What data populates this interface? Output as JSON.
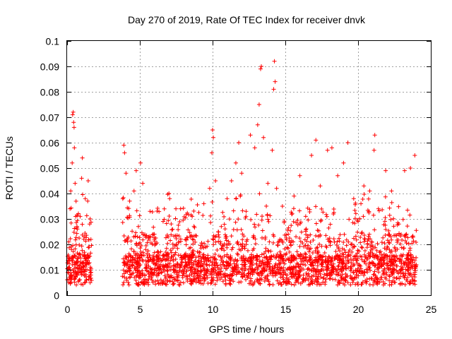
{
  "chart_data": {
    "type": "scatter",
    "title": "Day 270 of 2019, Rate Of TEC Index for receiver dnvk",
    "xlabel": "GPS time / hours",
    "ylabel": "ROTI / TECUs",
    "xlim": [
      0,
      25
    ],
    "ylim": [
      0,
      0.1
    ],
    "xticks": [
      0,
      5,
      10,
      15,
      20,
      25
    ],
    "xtick_labels": [
      "0",
      "5",
      "10",
      "15",
      "20",
      "25"
    ],
    "yticks": [
      0,
      0.01,
      0.02,
      0.03,
      0.04,
      0.05,
      0.06,
      0.07,
      0.08,
      0.09,
      0.1
    ],
    "ytick_labels": [
      "0",
      "0.01",
      "0.02",
      "0.03",
      "0.04",
      "0.05",
      "0.06",
      "0.07",
      "0.08",
      "0.09",
      "0.1"
    ],
    "grid": true,
    "marker": "+",
    "color": "#ff0000",
    "data_gaps_hours": [
      [
        1.7,
        3.8
      ]
    ],
    "time_range_hours": [
      0,
      24
    ],
    "series": [
      {
        "name": "ROTI",
        "points": [
          [
            0.05,
            0.009
          ],
          [
            0.12,
            0.021
          ],
          [
            0.2,
            0.034
          ],
          [
            0.25,
            0.041
          ],
          [
            0.3,
            0.018
          ],
          [
            0.35,
            0.052
          ],
          [
            0.38,
            0.071
          ],
          [
            0.42,
            0.072
          ],
          [
            0.45,
            0.068
          ],
          [
            0.48,
            0.066
          ],
          [
            0.5,
            0.058
          ],
          [
            0.55,
            0.044
          ],
          [
            0.6,
            0.011
          ],
          [
            0.7,
            0.026
          ],
          [
            0.8,
            0.015
          ],
          [
            0.9,
            0.031
          ],
          [
            1.0,
            0.046
          ],
          [
            1.05,
            0.054
          ],
          [
            1.15,
            0.022
          ],
          [
            1.25,
            0.038
          ],
          [
            1.35,
            0.012
          ],
          [
            1.45,
            0.045
          ],
          [
            1.55,
            0.028
          ],
          [
            1.65,
            0.009
          ],
          [
            3.9,
            0.059
          ],
          [
            3.95,
            0.056
          ],
          [
            4.05,
            0.048
          ],
          [
            4.15,
            0.021
          ],
          [
            4.3,
            0.037
          ],
          [
            4.5,
            0.013
          ],
          [
            4.6,
            0.041
          ],
          [
            4.75,
            0.049
          ],
          [
            4.9,
            0.027
          ],
          [
            5.05,
            0.052
          ],
          [
            5.2,
            0.044
          ],
          [
            5.4,
            0.018
          ],
          [
            5.7,
            0.033
          ],
          [
            6.0,
            0.024
          ],
          [
            6.3,
            0.011
          ],
          [
            6.6,
            0.029
          ],
          [
            7.0,
            0.04
          ],
          [
            7.05,
            0.038
          ],
          [
            7.4,
            0.016
          ],
          [
            7.8,
            0.034
          ],
          [
            8.2,
            0.022
          ],
          [
            8.6,
            0.031
          ],
          [
            9.0,
            0.013
          ],
          [
            9.4,
            0.036
          ],
          [
            9.8,
            0.042
          ],
          [
            9.95,
            0.056
          ],
          [
            10.0,
            0.065
          ],
          [
            10.05,
            0.062
          ],
          [
            10.2,
            0.045
          ],
          [
            10.6,
            0.027
          ],
          [
            11.0,
            0.038
          ],
          [
            11.3,
            0.045
          ],
          [
            11.6,
            0.052
          ],
          [
            11.8,
            0.06
          ],
          [
            12.0,
            0.048
          ],
          [
            12.3,
            0.031
          ],
          [
            12.6,
            0.063
          ],
          [
            12.9,
            0.058
          ],
          [
            13.1,
            0.067
          ],
          [
            13.2,
            0.075
          ],
          [
            13.3,
            0.089
          ],
          [
            13.35,
            0.09
          ],
          [
            13.5,
            0.062
          ],
          [
            13.8,
            0.044
          ],
          [
            14.1,
            0.057
          ],
          [
            14.2,
            0.081
          ],
          [
            14.25,
            0.092
          ],
          [
            14.3,
            0.084
          ],
          [
            14.4,
            0.042
          ],
          [
            14.8,
            0.035
          ],
          [
            15.2,
            0.024
          ],
          [
            15.6,
            0.039
          ],
          [
            16.0,
            0.047
          ],
          [
            16.4,
            0.031
          ],
          [
            16.8,
            0.055
          ],
          [
            17.1,
            0.061
          ],
          [
            17.4,
            0.043
          ],
          [
            17.9,
            0.057
          ],
          [
            18.2,
            0.058
          ],
          [
            18.6,
            0.047
          ],
          [
            19.0,
            0.052
          ],
          [
            19.3,
            0.06
          ],
          [
            19.7,
            0.038
          ],
          [
            20.0,
            0.029
          ],
          [
            20.4,
            0.043
          ],
          [
            20.8,
            0.041
          ],
          [
            21.1,
            0.057
          ],
          [
            21.15,
            0.063
          ],
          [
            21.4,
            0.034
          ],
          [
            21.9,
            0.049
          ],
          [
            22.3,
            0.041
          ],
          [
            22.8,
            0.028
          ],
          [
            23.2,
            0.049
          ],
          [
            23.6,
            0.05
          ],
          [
            23.9,
            0.055
          ],
          [
            24.0,
            0.012
          ]
        ]
      }
    ]
  }
}
